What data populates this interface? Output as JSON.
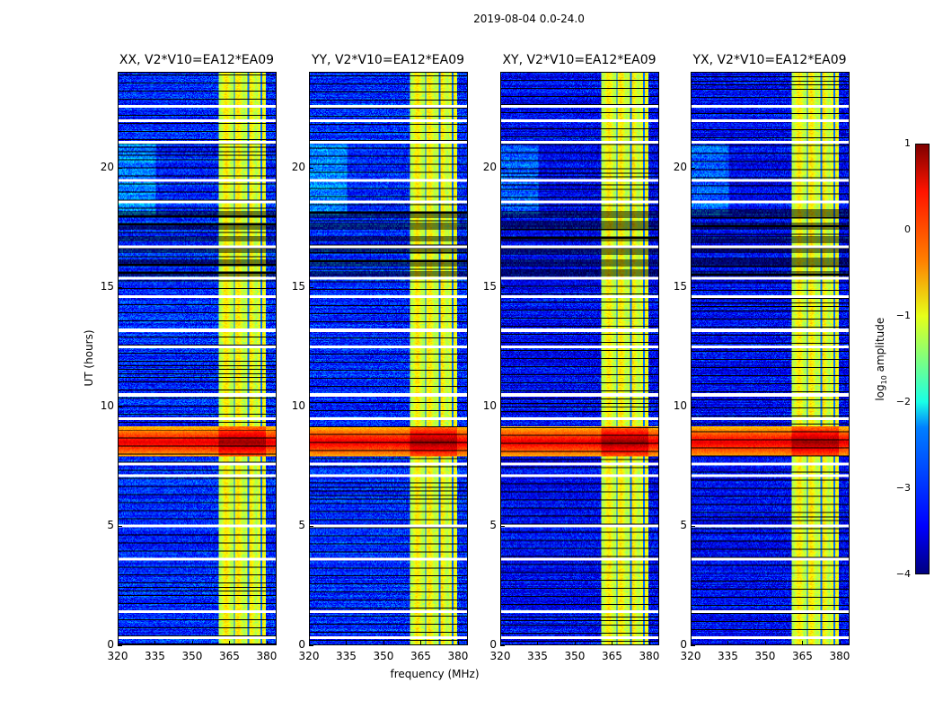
{
  "suptitle": "2019-08-04 0.0-24.0",
  "chart_data": {
    "type": "heatmap",
    "panels": [
      {
        "title": "XX, V2*V10=EA12*EA09"
      },
      {
        "title": "YY, V2*V10=EA12*EA09"
      },
      {
        "title": "XY, V2*V10=EA12*EA09"
      },
      {
        "title": "YX, V2*V10=EA12*EA09"
      }
    ],
    "xlabel": "frequency (MHz)",
    "ylabel": "UT (hours)",
    "xlim": [
      320,
      384
    ],
    "ylim": [
      0,
      24
    ],
    "xticks": [
      "320",
      "335",
      "350",
      "365",
      "380"
    ],
    "yticks": [
      "0",
      "5",
      "10",
      "15",
      "20"
    ],
    "colorbar": {
      "label_prefix": "log",
      "label_sub": "10",
      "label_suffix": " amplitude",
      "range": [
        -4,
        1
      ],
      "ticks": [
        "1",
        "0",
        "−1",
        "−2",
        "−3",
        "−4"
      ],
      "colormap": "jet"
    },
    "features": {
      "background_log_amplitude": -3.2,
      "high_band_MHz": [
        360.5,
        380
      ],
      "high_band_log_amplitude": -1.0,
      "rfi_event_hours": [
        7.9,
        9.2
      ],
      "rfi_event_log_amplitude": 0.5,
      "flagged_hours": [
        0.3,
        1.4,
        3.6,
        5.0,
        7.1,
        7.6,
        9.5,
        10.5,
        12.5,
        13.2,
        14.6,
        15.4,
        16.7,
        18.6,
        19.5,
        21.1,
        22.0,
        22.6
      ]
    }
  }
}
